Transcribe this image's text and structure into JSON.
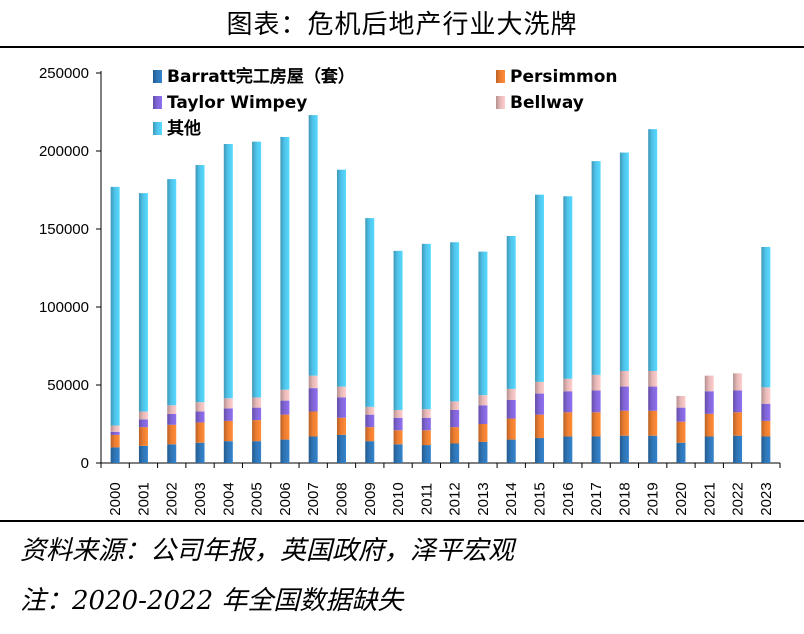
{
  "page": {
    "title": "图表：危机后地产行业大洗牌",
    "source": "资料来源：公司年报，英国政府，泽平宏观",
    "note": "注：2020-2022 年全国数据缺失"
  },
  "chart_data": {
    "type": "bar",
    "stacked": true,
    "title": "",
    "xlabel": "",
    "ylabel": "",
    "ylim": [
      0,
      250000
    ],
    "yticks": [
      0,
      50000,
      100000,
      150000,
      200000,
      250000
    ],
    "ytick_labels": [
      "0",
      "50000",
      "100000",
      "150000",
      "200000",
      "250000"
    ],
    "legend_position": "top",
    "categories": [
      "2000",
      "2001",
      "2002",
      "2003",
      "2004",
      "2005",
      "2006",
      "2007",
      "2008",
      "2009",
      "2010",
      "2011",
      "2012",
      "2013",
      "2014",
      "2015",
      "2016",
      "2017",
      "2018",
      "2019",
      "2020",
      "2021",
      "2022",
      "2023"
    ],
    "series": [
      {
        "name": "Barratt完工房屋（套）",
        "color": "#2e75b6",
        "values": [
          10000,
          11000,
          12000,
          13000,
          14000,
          14000,
          15000,
          17000,
          18000,
          14000,
          12000,
          11500,
          12500,
          13500,
          15000,
          16000,
          17000,
          17000,
          17500,
          17500,
          13000,
          17000,
          17500,
          17000
        ]
      },
      {
        "name": "Persimmon",
        "color": "#ed7d31",
        "values": [
          8000,
          12000,
          12500,
          13000,
          13000,
          13500,
          16000,
          16000,
          11000,
          9000,
          9000,
          9500,
          10500,
          11500,
          13500,
          15000,
          15500,
          15500,
          16000,
          16000,
          13500,
          14500,
          15000,
          10000
        ]
      },
      {
        "name": "Taylor Wimpey",
        "color": "#8064d6",
        "values": [
          2000,
          5000,
          7000,
          7000,
          8000,
          8000,
          9000,
          15000,
          13000,
          8000,
          8000,
          8000,
          11000,
          12000,
          12000,
          13500,
          13500,
          14000,
          15500,
          15500,
          9000,
          14500,
          14000,
          11000
        ]
      },
      {
        "name": "Bellway",
        "color": "#e6b8b7",
        "values": [
          4000,
          5000,
          5500,
          6000,
          6500,
          6500,
          7000,
          8000,
          7000,
          5000,
          5000,
          5500,
          5500,
          6500,
          7000,
          7500,
          8000,
          10000,
          10000,
          10000,
          7500,
          10000,
          11000,
          10500
        ]
      },
      {
        "name": "其他",
        "color": "#4fc3ea",
        "values": [
          153000,
          140000,
          145000,
          152000,
          163000,
          164000,
          162000,
          167000,
          139000,
          121000,
          102000,
          106000,
          102000,
          92000,
          98000,
          120000,
          117000,
          137000,
          140000,
          155000,
          0,
          0,
          0,
          90000
        ]
      }
    ]
  }
}
